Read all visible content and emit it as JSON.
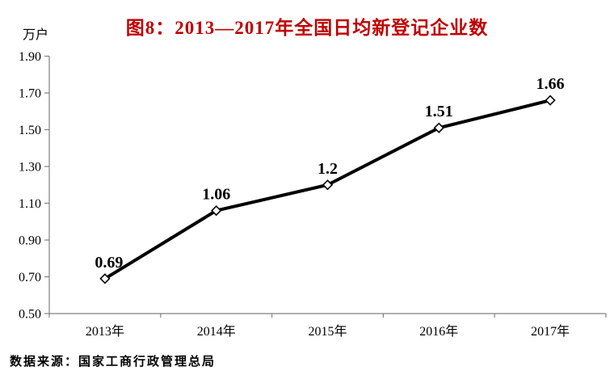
{
  "source": "数据来源：国家工商行政管理总局",
  "colors": {
    "title": "#c00000",
    "axis": "#808080",
    "line": "#000000",
    "marker_fill": "#ffffff",
    "text": "#000000"
  },
  "chart_data": {
    "type": "line",
    "title": "图8：2013—2017年全国日均新登记企业数",
    "xlabel": "",
    "ylabel": "万户",
    "categories": [
      "2013年",
      "2014年",
      "2015年",
      "2016年",
      "2017年"
    ],
    "values": [
      0.69,
      1.06,
      1.2,
      1.51,
      1.66
    ],
    "labels": [
      "0.69",
      "1.06",
      "1.2",
      "1.51",
      "1.66"
    ],
    "ylim": [
      0.5,
      1.9
    ],
    "ytick_step": 0.2,
    "yticks": [
      "0.50",
      "0.70",
      "0.90",
      "1.10",
      "1.30",
      "1.50",
      "1.70",
      "1.90"
    ],
    "grid": false,
    "legend": "none",
    "marker": "diamond"
  }
}
